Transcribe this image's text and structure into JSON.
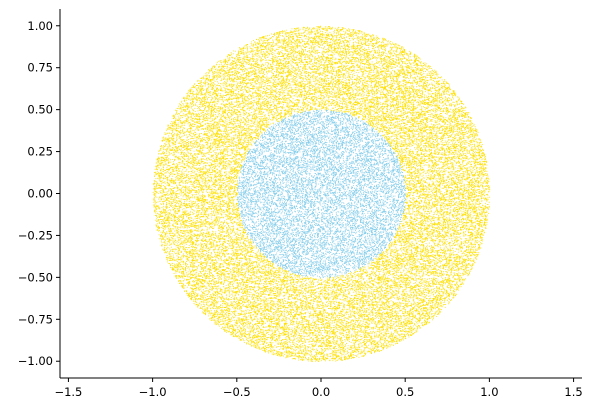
{
  "chart_data": {
    "type": "scatter",
    "title": "",
    "xlabel": "",
    "ylabel": "",
    "xlim": [
      -1.55,
      1.55
    ],
    "ylim": [
      -1.1,
      1.1
    ],
    "grid": false,
    "legend": "none",
    "aspect": "equal",
    "spines": [
      "left",
      "bottom"
    ],
    "x_ticks": [
      -1.5,
      -1.0,
      -0.5,
      0.0,
      0.5,
      1.0,
      1.5
    ],
    "x_tick_labels": [
      "−1.5",
      "−1.0",
      "−0.5",
      "0.0",
      "0.5",
      "1.0",
      "1.5"
    ],
    "y_ticks": [
      1.0,
      0.75,
      0.5,
      0.25,
      0.0,
      -0.25,
      -0.5,
      -0.75,
      -1.0
    ],
    "y_tick_labels": [
      "1.00",
      "0.75",
      "0.50",
      "0.25",
      "0.00",
      "−0.25",
      "−0.50",
      "−0.75",
      "−1.00"
    ],
    "series": [
      {
        "distribution": "uniform random points, annulus",
        "r_min": 0.5,
        "r_max": 1.0,
        "center": [
          0.0,
          0.0
        ],
        "color": "#FFE000"
      },
      {
        "distribution": "uniform random points, disk",
        "r_min": 0.0,
        "r_max": 0.5,
        "center": [
          0.0,
          0.0
        ],
        "color": "#87CEEB"
      }
    ]
  }
}
